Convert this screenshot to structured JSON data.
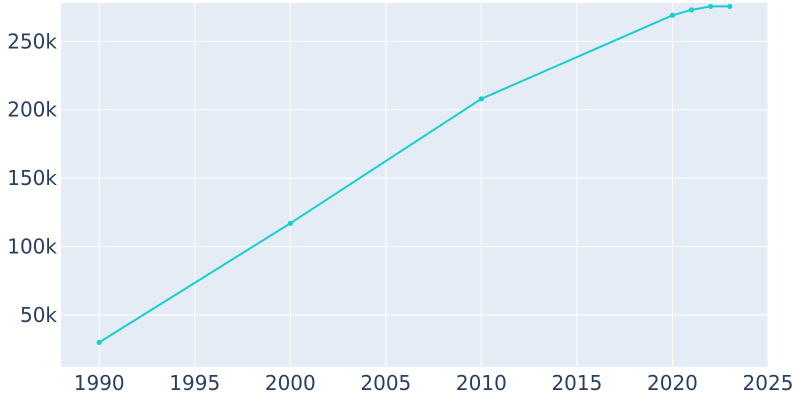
{
  "chart_data": {
    "type": "line",
    "title": "",
    "xlabel": "",
    "ylabel": "",
    "x": [
      1990,
      2000,
      2010,
      2020,
      2021,
      2022,
      2023
    ],
    "series": [
      {
        "values": [
          30000,
          117000,
          208000,
          269000,
          273000,
          275500,
          275500
        ]
      }
    ],
    "xlim": [
      1988,
      2025
    ],
    "ylim": [
      12000,
      278000
    ],
    "xticks": [
      1990,
      1995,
      2000,
      2005,
      2010,
      2015,
      2020,
      2025
    ],
    "xtick_labels": [
      "1990",
      "1995",
      "2000",
      "2005",
      "2010",
      "2015",
      "2020",
      "2025"
    ],
    "yticks": [
      50000,
      100000,
      150000,
      200000,
      250000
    ],
    "ytick_labels": [
      "50k",
      "100k",
      "150k",
      "200k",
      "250k"
    ],
    "grid": true,
    "legend": "none",
    "colors": {
      "line": "#17cfcf",
      "plot_bg": "#e5ecf6",
      "grid": "#ffffff",
      "text": "#2a3f5f"
    }
  }
}
